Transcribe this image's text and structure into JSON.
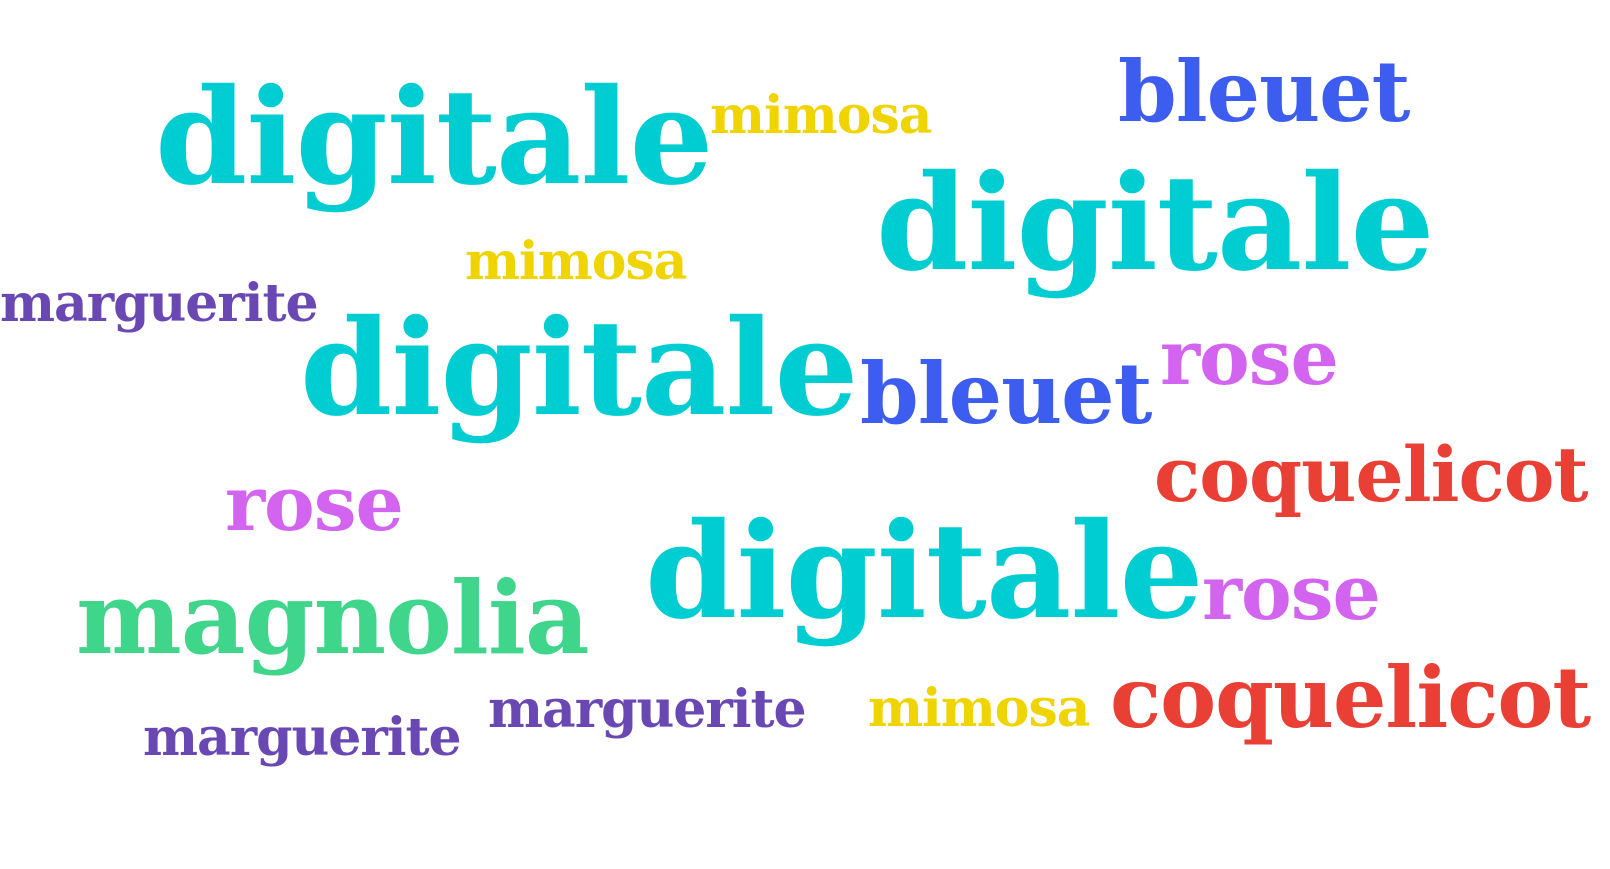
{
  "colors": {
    "digitale": "#00cdd2",
    "mimosa": "#f0d400",
    "bleuet": "#3d5cf0",
    "marguerite": "#6a48b4",
    "rose": "#d264f0",
    "coquelicot": "#ea3f34",
    "magnolia": "#3fd68c"
  },
  "words": [
    "digitale",
    "mimosa",
    "bleuet",
    "digitale",
    "mimosa",
    "marguerite",
    "digitale",
    "bleuet",
    "rose",
    "coquelicot",
    "rose",
    "magnolia",
    "digitale",
    "rose",
    "marguerite",
    "mimosa",
    "coquelicot",
    "marguerite"
  ]
}
